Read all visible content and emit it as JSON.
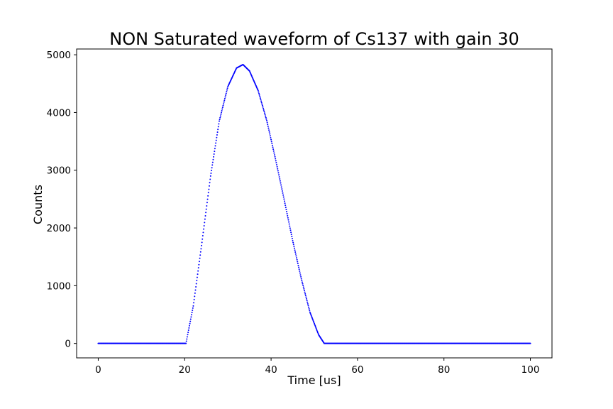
{
  "chart_data": {
    "type": "scatter",
    "title": "NON Saturated waveform of Cs137 with gain 30",
    "xlabel": "Time [us]",
    "ylabel": "Counts",
    "xlim": [
      -5,
      105
    ],
    "ylim": [
      -250,
      5100
    ],
    "xticks": [
      0,
      20,
      40,
      60,
      80,
      100
    ],
    "yticks": [
      0,
      1000,
      2000,
      3000,
      4000,
      5000
    ],
    "xtick_labels": [
      "0",
      "20",
      "40",
      "60",
      "80",
      "100"
    ],
    "ytick_labels": [
      "0",
      "1000",
      "2000",
      "3000",
      "4000",
      "5000"
    ],
    "grid": false,
    "legend": "none",
    "series": [
      {
        "color": "#0000ff",
        "marker": "dot",
        "x": [
          0,
          5,
          10,
          15,
          20,
          20.3,
          22,
          24,
          26,
          28,
          30,
          32,
          33.5,
          35,
          37,
          39,
          41,
          43,
          45,
          47,
          49,
          51,
          52.3,
          55,
          60,
          65,
          70,
          75,
          80,
          85,
          90,
          95,
          100
        ],
        "y": [
          0,
          0,
          0,
          0,
          0,
          0,
          650,
          1750,
          2900,
          3850,
          4450,
          4770,
          4830,
          4720,
          4380,
          3860,
          3200,
          2500,
          1780,
          1120,
          540,
          150,
          0,
          0,
          0,
          0,
          0,
          0,
          0,
          0,
          0,
          0,
          0
        ]
      }
    ]
  }
}
